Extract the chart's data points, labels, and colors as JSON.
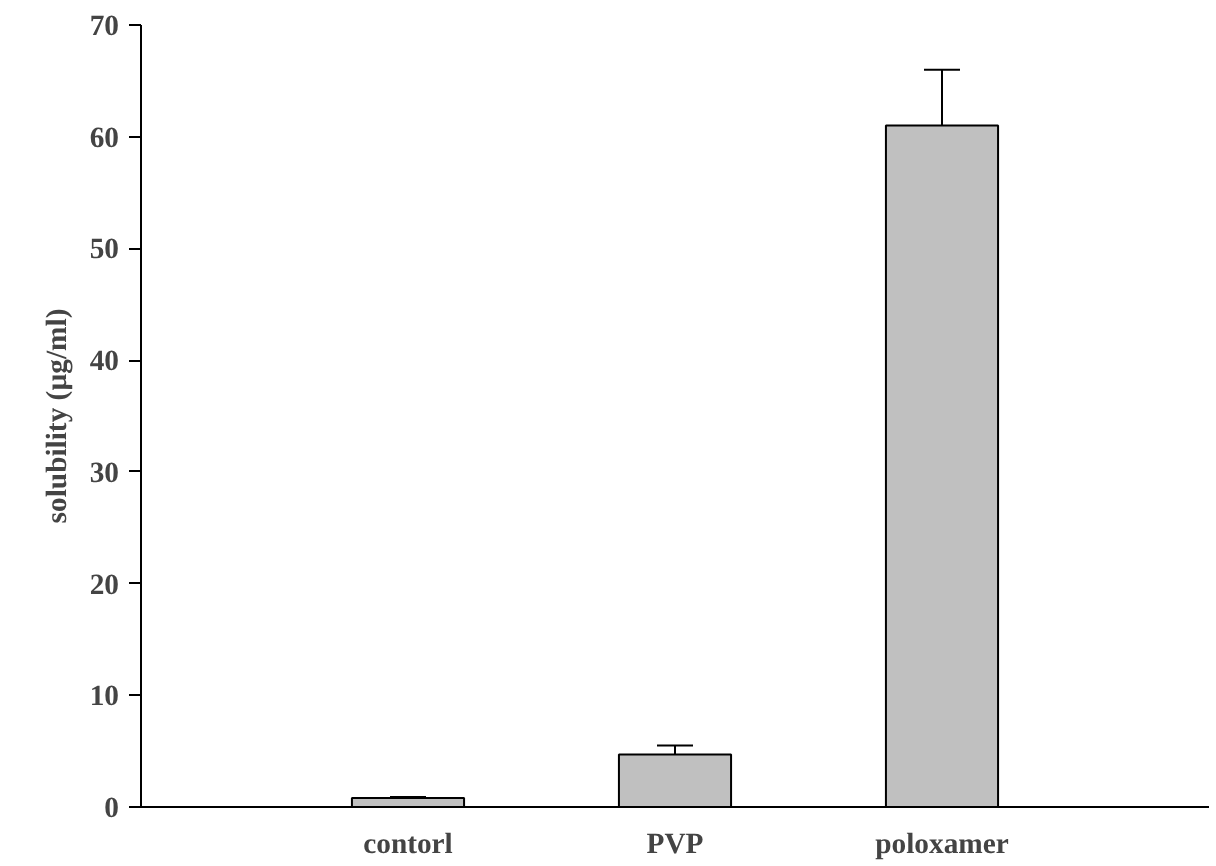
{
  "chart_data": {
    "type": "bar",
    "ylabel": "solubility (µg/ml)",
    "categories": [
      "contorl",
      "PVP",
      "poloxamer"
    ],
    "values": [
      0.8,
      4.7,
      61
    ],
    "errors": [
      0.1,
      0.8,
      5
    ],
    "color": "#c0c0c0",
    "ylim": [
      0,
      70
    ],
    "yticks": [
      0,
      10,
      20,
      30,
      40,
      50,
      60,
      70
    ],
    "grid": false
  }
}
